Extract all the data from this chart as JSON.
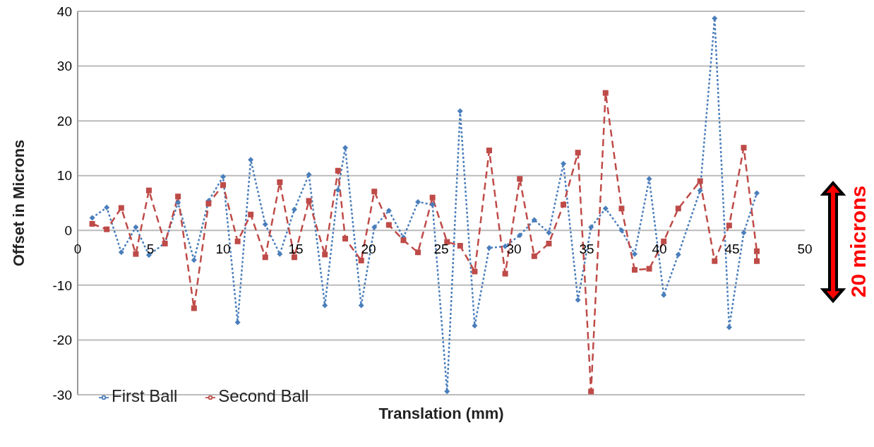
{
  "chart_data": {
    "type": "line",
    "xlabel": "Translation (mm)",
    "ylabel": "Offset in Microns",
    "xlim": [
      0,
      50
    ],
    "xticks": [
      0,
      5,
      10,
      15,
      20,
      25,
      30,
      35,
      40,
      45,
      50
    ],
    "ylim": [
      -30,
      40
    ],
    "yticks": [
      -30,
      -20,
      -10,
      0,
      10,
      20,
      30,
      40
    ],
    "grid": "y",
    "legend": "bottom left",
    "annotations": [
      "20 microns"
    ],
    "series": [
      {
        "name": "First Ball",
        "color": "#4a7ebb",
        "marker": "diamond",
        "line_style": "dotted",
        "x": [
          1,
          2,
          3,
          4,
          4.9,
          6,
          6.9,
          8,
          9,
          10,
          11,
          11.9,
          12.9,
          13.9,
          14.9,
          15.9,
          17,
          17.9,
          18.4,
          19.5,
          20.4,
          21.4,
          22.4,
          23.4,
          24.4,
          25.4,
          26.3,
          27.3,
          28.3,
          29.4,
          30.4,
          31.4,
          32.4,
          33.4,
          34.4,
          35.3,
          36.3,
          37.4,
          38.3,
          39.3,
          40.3,
          41.3,
          42.8,
          43.8,
          44.8,
          45.8,
          46.7
        ],
        "values": [
          2.3,
          4.2,
          -4,
          0.6,
          -4.5,
          -2.3,
          5.1,
          -5.4,
          5.4,
          9.8,
          -16.8,
          12.9,
          1.1,
          -4.3,
          3.8,
          10.2,
          -13.7,
          7.4,
          15.1,
          -13.7,
          0.6,
          3.6,
          -1.3,
          5.2,
          4.7,
          -29.4,
          21.8,
          -17.4,
          -3.2,
          -2.9,
          -0.9,
          1.9,
          -0.4,
          12.2,
          -12.7,
          0.6,
          4,
          0,
          -4.3,
          9.4,
          -11.8,
          -4.4,
          7.3,
          38.7,
          -17.7,
          -0.4,
          6.8
        ]
      },
      {
        "name": "Second Ball",
        "color": "#be4b48",
        "marker": "square",
        "line_style": "dashed",
        "x": [
          1,
          2,
          3,
          4,
          4.9,
          6,
          6.9,
          8,
          9,
          10,
          11,
          11.9,
          12.9,
          13.9,
          14.9,
          15.9,
          17,
          17.9,
          18.4,
          19.5,
          20.4,
          21.4,
          22.4,
          23.4,
          24.4,
          25.4,
          26.3,
          27.3,
          28.3,
          29.4,
          30.4,
          31.4,
          32.4,
          33.4,
          34.4,
          35.3,
          36.3,
          37.4,
          38.3,
          39.3,
          40.3,
          41.3,
          42.8,
          43.8,
          44.8,
          45.8,
          46.7,
          46.7
        ],
        "values": [
          1.2,
          0.2,
          4.1,
          -4.3,
          7.3,
          -2.4,
          6.2,
          -14.2,
          4.9,
          8.3,
          -2,
          2.9,
          -4.9,
          8.8,
          -4.9,
          5.4,
          -4.4,
          10.9,
          -1.5,
          -5.5,
          7.1,
          1,
          -1.8,
          -4,
          6,
          -2.1,
          -2.8,
          -7.5,
          14.6,
          -7.9,
          9.4,
          -4.7,
          -2.4,
          4.7,
          14.2,
          -29.4,
          25.1,
          4,
          -7.2,
          -7,
          -2,
          4,
          9,
          -5.6,
          0.9,
          15.1,
          -3.8,
          -5.6
        ]
      }
    ]
  }
}
